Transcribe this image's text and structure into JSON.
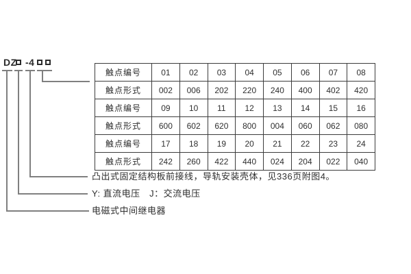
{
  "model": {
    "code": "DZ□-4□□",
    "prefix": "DZ",
    "dash_number": "-4"
  },
  "table": {
    "rows": [
      {
        "label": "触点编号",
        "values": [
          "01",
          "02",
          "03",
          "04",
          "05",
          "06",
          "07",
          "08"
        ]
      },
      {
        "label": "触点形式",
        "values": [
          "002",
          "006",
          "202",
          "220",
          "240",
          "400",
          "402",
          "420"
        ]
      },
      {
        "label": "触点编号",
        "values": [
          "09",
          "10",
          "11",
          "12",
          "13",
          "14",
          "15",
          "16"
        ]
      },
      {
        "label": "触点形式",
        "values": [
          "600",
          "602",
          "620",
          "800",
          "004",
          "060",
          "062",
          "080"
        ]
      },
      {
        "label": "触点编号",
        "values": [
          "17",
          "18",
          "19",
          "20",
          "21",
          "22",
          "23",
          "24"
        ]
      },
      {
        "label": "触点形式",
        "values": [
          "242",
          "260",
          "422",
          "440",
          "024",
          "204",
          "022",
          "040"
        ]
      }
    ]
  },
  "annotations": {
    "mount_note": "凸出式固定结构板前接线，导轨安装壳体，见336页附图4。",
    "voltage_note": "Y: 直流电压　J：交流电压",
    "relay_note": "电磁式中间继电器"
  },
  "colors": {
    "leader_line": "#7f7f7f",
    "table_border": "#3b3b3b",
    "text": "#2f2f2f",
    "background": "#ffffff"
  }
}
